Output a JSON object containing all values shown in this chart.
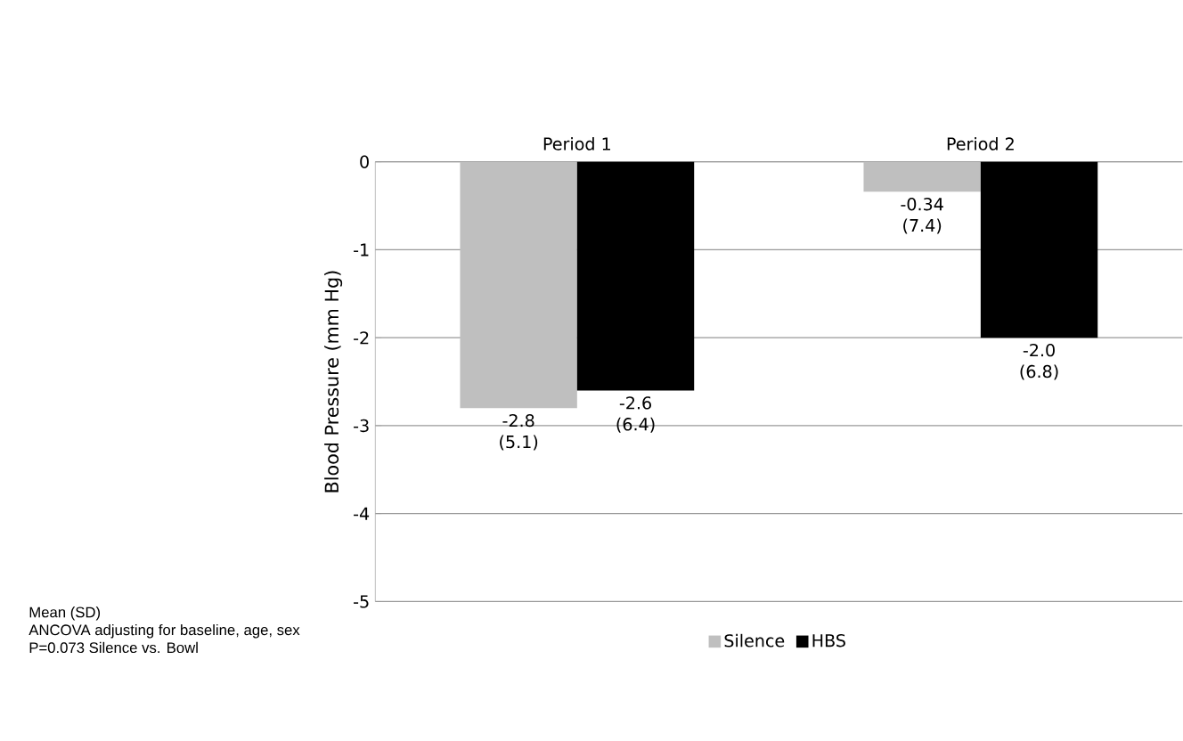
{
  "chart_data": {
    "type": "bar",
    "ylabel": "Blood Pressure (mm Hg)",
    "categories": [
      "Period 1",
      "Period 2"
    ],
    "series": [
      {
        "name": "Silence",
        "color": "#bfbfbf",
        "values": [
          -2.8,
          -0.34
        ],
        "value_labels": [
          "-2.8 (5.1)",
          "-0.34 (7.4)"
        ]
      },
      {
        "name": "HBS",
        "color": "#000000",
        "values": [
          -2.6,
          -2.0
        ],
        "value_labels": [
          "-2.6 (6.4)",
          "-2.0 (6.8)"
        ]
      }
    ],
    "ylim": [
      -5,
      0
    ],
    "yticks": [
      -5,
      -4,
      -3,
      -2,
      -1,
      0
    ],
    "grid": "y",
    "legend": "bottom",
    "annotations": [
      "Mean (SD)",
      "ANCOVA adjusting for baseline, age, sex",
      "P=0.073 Silence vs. Bowl"
    ]
  }
}
